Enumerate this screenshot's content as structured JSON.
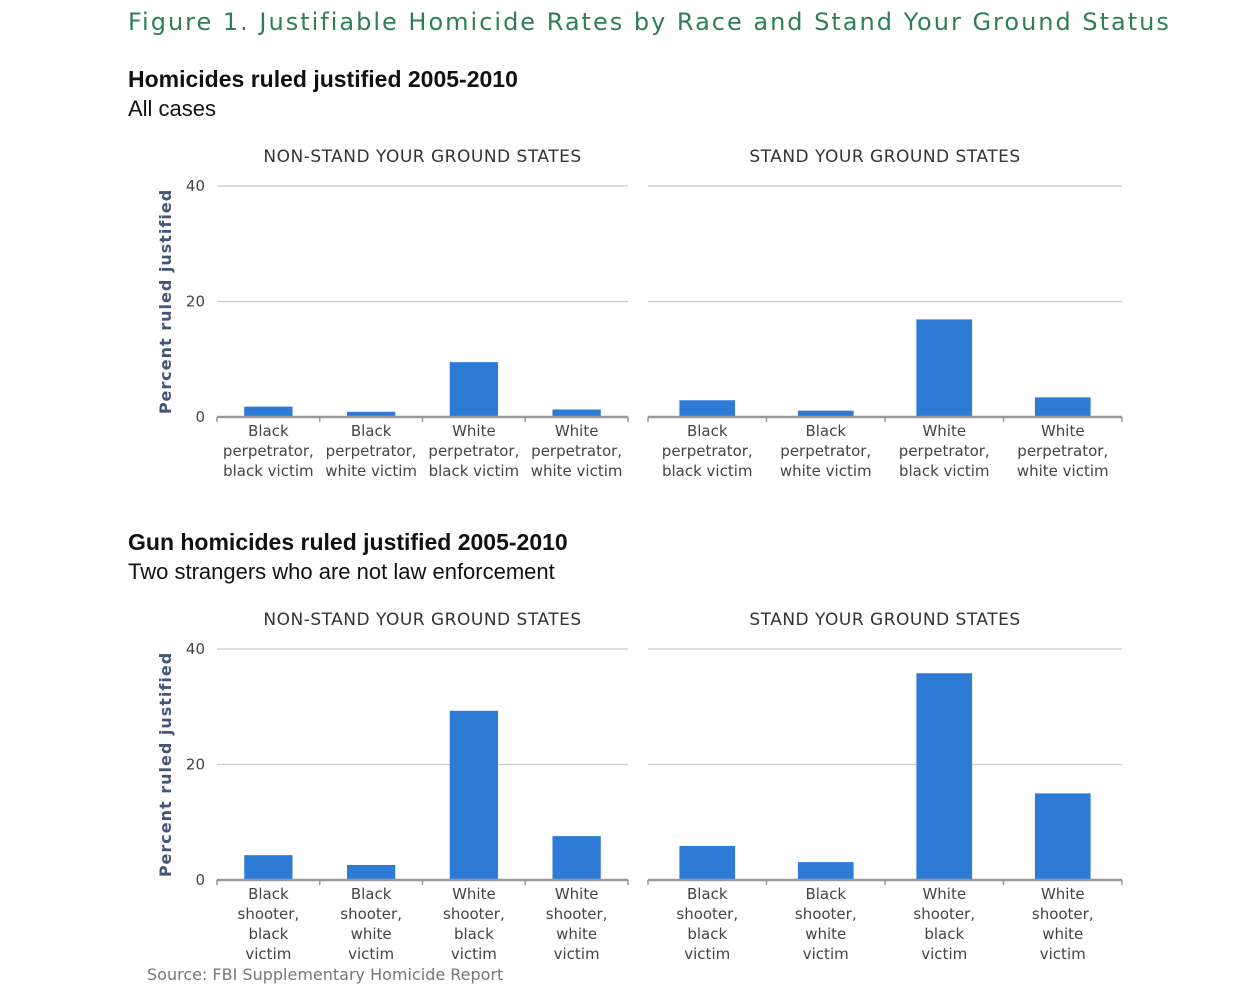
{
  "figure_title": "Figure 1. Justifiable Homicide Rates by Race and Stand Your Ground Status",
  "source": "Source: FBI Supplementary Homicide Report",
  "colors": {
    "bar": "#2e7bd6",
    "grid": "#cccccc",
    "axis": "#999999",
    "title_green": "#2f7d5a"
  },
  "chart_data": [
    {
      "type": "bar",
      "title": "Homicides ruled justified 2005-2010",
      "subtitle": "All cases",
      "ylabel": "Percent ruled justified",
      "ylim": [
        0,
        40
      ],
      "yticks": [
        "0",
        "20",
        "40"
      ],
      "panels": [
        {
          "title": "NON-STAND YOUR GROUND STATES",
          "categories": [
            [
              "Black",
              "perpetrator,",
              "black victim"
            ],
            [
              "Black",
              "perpetrator,",
              "white victim"
            ],
            [
              "White",
              "perpetrator,",
              "black victim"
            ],
            [
              "White",
              "perpetrator,",
              "white victim"
            ]
          ],
          "values": [
            1.8,
            0.9,
            9.5,
            1.3
          ]
        },
        {
          "title": "STAND YOUR GROUND STATES",
          "categories": [
            [
              "Black",
              "perpetrator,",
              "black victim"
            ],
            [
              "Black",
              "perpetrator,",
              "white victim"
            ],
            [
              "White",
              "perpetrator,",
              "black victim"
            ],
            [
              "White",
              "perpetrator,",
              "white victim"
            ]
          ],
          "values": [
            2.9,
            1.1,
            16.9,
            3.4
          ]
        }
      ]
    },
    {
      "type": "bar",
      "title": "Gun homicides ruled justified 2005-2010",
      "subtitle": "Two strangers who are not law enforcement",
      "ylabel": "Percent ruled justified",
      "ylim": [
        0,
        40
      ],
      "yticks": [
        "0",
        "20",
        "40"
      ],
      "panels": [
        {
          "title": "NON-STAND YOUR GROUND STATES",
          "categories": [
            [
              "Black",
              "shooter,",
              "black",
              "victim"
            ],
            [
              "Black",
              "shooter,",
              "white",
              "victim"
            ],
            [
              "White",
              "shooter,",
              "black",
              "victim"
            ],
            [
              "White",
              "shooter,",
              "white",
              "victim"
            ]
          ],
          "values": [
            4.3,
            2.6,
            29.3,
            7.6
          ]
        },
        {
          "title": "STAND YOUR GROUND STATES",
          "categories": [
            [
              "Black",
              "shooter,",
              "black",
              "victim"
            ],
            [
              "Black",
              "shooter,",
              "white",
              "victim"
            ],
            [
              "White",
              "shooter,",
              "black",
              "victim"
            ],
            [
              "White",
              "shooter,",
              "white",
              "victim"
            ]
          ],
          "values": [
            5.9,
            3.1,
            35.8,
            15.0
          ]
        }
      ]
    }
  ]
}
